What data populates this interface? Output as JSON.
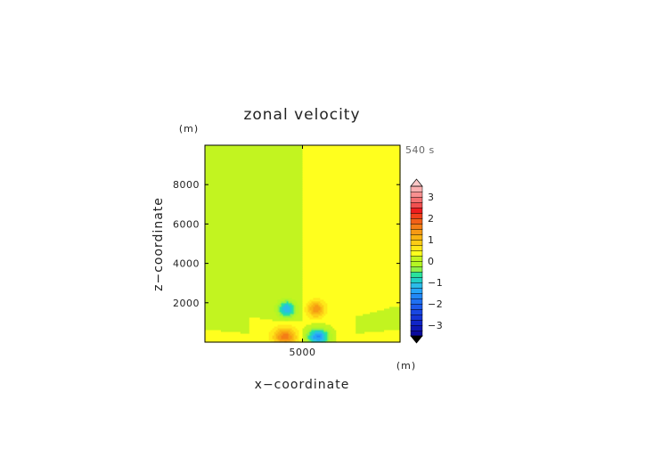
{
  "chart_data": {
    "type": "heatmap",
    "title": "zonal velocity",
    "xlabel": "x−coordinate",
    "ylabel": "z−coordinate",
    "x_unit": "(m)",
    "y_unit": "(m)",
    "time_label": "540 s",
    "xlim": [
      0,
      10000
    ],
    "ylim": [
      0,
      10000
    ],
    "x_ticks": [
      5000
    ],
    "x_tick_labels": [
      "5000"
    ],
    "y_ticks": [
      2000,
      4000,
      6000,
      8000
    ],
    "y_tick_labels": [
      "2000",
      "4000",
      "6000",
      "8000"
    ],
    "colorbar": {
      "min": -3.5,
      "max": 3.5,
      "step": 0.25,
      "ticks": [
        3,
        2,
        1,
        0,
        -1,
        -2,
        -3
      ],
      "tick_labels": [
        "3",
        "2",
        "1",
        "0",
        "−1",
        "−2",
        "−3"
      ],
      "extend": "both"
    },
    "background": {
      "upper_left_value": 0.15,
      "upper_right_value": 0.35,
      "lower_band_value": 0.35,
      "lower_side_value": 0.15,
      "band_base_height": 1850,
      "band_center_height": 1050
    },
    "features": [
      {
        "x": 4200,
        "z": 1700,
        "sigma_x": 300,
        "sigma_z": 280,
        "peak": -1.4
      },
      {
        "x": 5700,
        "z": 1700,
        "sigma_x": 300,
        "sigma_z": 280,
        "peak": 1.1
      },
      {
        "x": 4100,
        "z": 300,
        "sigma_x": 400,
        "sigma_z": 300,
        "peak": 1.3
      },
      {
        "x": 5800,
        "z": 300,
        "sigma_x": 400,
        "sigma_z": 300,
        "peak": -1.9
      }
    ]
  },
  "colors": {
    "background": "#ffffff",
    "text": "#222222",
    "frame": "#000000",
    "levels": [
      {
        "from": -3.5,
        "to": -3.25,
        "color": "#0a0a9e"
      },
      {
        "from": -3.25,
        "to": -3.0,
        "color": "#0d16b4"
      },
      {
        "from": -3.0,
        "to": -2.75,
        "color": "#1024c8"
      },
      {
        "from": -2.75,
        "to": -2.5,
        "color": "#1434d6"
      },
      {
        "from": -2.5,
        "to": -2.25,
        "color": "#1846e2"
      },
      {
        "from": -2.25,
        "to": -2.0,
        "color": "#1c5aec"
      },
      {
        "from": -2.0,
        "to": -1.75,
        "color": "#1f70f2"
      },
      {
        "from": -1.75,
        "to": -1.5,
        "color": "#2288f6"
      },
      {
        "from": -1.5,
        "to": -1.25,
        "color": "#26a4f8"
      },
      {
        "from": -1.25,
        "to": -1.0,
        "color": "#2cbce8"
      },
      {
        "from": -1.0,
        "to": -0.75,
        "color": "#22d0c4"
      },
      {
        "from": -0.75,
        "to": -0.5,
        "color": "#2ae29c"
      },
      {
        "from": -0.5,
        "to": -0.25,
        "color": "#8ef04a"
      },
      {
        "from": -0.25,
        "to": 0.0,
        "color": "#b4f624"
      },
      {
        "from": 0.0,
        "to": 0.25,
        "color": "#c2f420"
      },
      {
        "from": 0.25,
        "to": 0.5,
        "color": "#ffff1e"
      },
      {
        "from": 0.5,
        "to": 0.75,
        "color": "#ffe81a"
      },
      {
        "from": 0.75,
        "to": 1.0,
        "color": "#fccc16"
      },
      {
        "from": 1.0,
        "to": 1.25,
        "color": "#f8b412"
      },
      {
        "from": 1.25,
        "to": 1.5,
        "color": "#f69a14"
      },
      {
        "from": 1.5,
        "to": 1.75,
        "color": "#f47e16"
      },
      {
        "from": 1.75,
        "to": 2.0,
        "color": "#f26018"
      },
      {
        "from": 2.0,
        "to": 2.25,
        "color": "#f0401c"
      },
      {
        "from": 2.25,
        "to": 2.5,
        "color": "#ee1c1e"
      },
      {
        "from": 2.5,
        "to": 2.75,
        "color": "#f05050"
      },
      {
        "from": 2.75,
        "to": 3.0,
        "color": "#f47070"
      },
      {
        "from": 3.0,
        "to": 3.25,
        "color": "#f89090"
      },
      {
        "from": 3.25,
        "to": 3.5,
        "color": "#fcb0b0"
      }
    ],
    "under": "#0a0a80",
    "over": "#fcc8c8"
  }
}
